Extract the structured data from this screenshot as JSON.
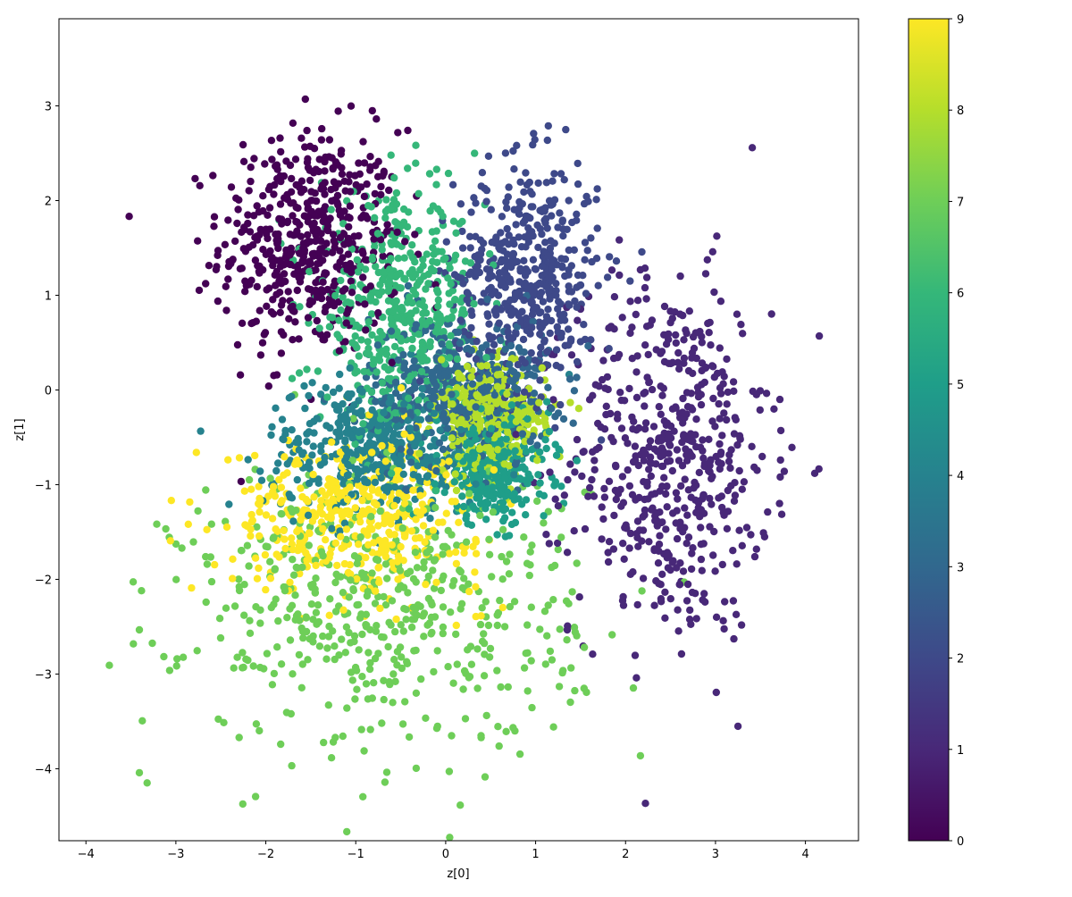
{
  "chart_data": {
    "type": "scatter",
    "title": "",
    "xlabel": "z[0]",
    "ylabel": "z[1]",
    "xlim": [
      -4.3,
      4.59
    ],
    "ylim": [
      -4.76,
      3.92
    ],
    "xticks": [
      -4,
      -3,
      -2,
      -1,
      0,
      1,
      2,
      3,
      4
    ],
    "yticks": [
      -4,
      -3,
      -2,
      -1,
      0,
      1,
      2,
      3
    ],
    "grid": false,
    "colormap": "viridis",
    "colorbar": {
      "range": [
        0,
        9
      ],
      "ticks": [
        0,
        1,
        2,
        3,
        4,
        5,
        6,
        7,
        8,
        9
      ],
      "placement": "right"
    },
    "class_colors": [
      "#440154",
      "#482878",
      "#3e4989",
      "#31688e",
      "#26828e",
      "#1f9e89",
      "#35b779",
      "#6ece58",
      "#b5de2b",
      "#fde725"
    ],
    "clusters": [
      {
        "label": 0,
        "center": [
          -1.5,
          1.55
        ],
        "std": [
          0.5,
          0.6
        ],
        "count": 520
      },
      {
        "label": 1,
        "center": [
          2.5,
          -0.7
        ],
        "std": [
          0.55,
          0.95
        ],
        "count": 560
      },
      {
        "label": 2,
        "center": [
          0.9,
          1.2
        ],
        "std": [
          0.4,
          0.6
        ],
        "count": 480
      },
      {
        "label": 3,
        "center": [
          0.15,
          0.0
        ],
        "std": [
          0.5,
          0.4
        ],
        "count": 420
      },
      {
        "label": 4,
        "center": [
          -0.8,
          -0.6
        ],
        "std": [
          0.6,
          0.35
        ],
        "count": 420
      },
      {
        "label": 5,
        "center": [
          0.55,
          -0.8
        ],
        "std": [
          0.3,
          0.3
        ],
        "count": 340
      },
      {
        "label": 6,
        "center": [
          -0.5,
          0.8
        ],
        "std": [
          0.45,
          0.6
        ],
        "count": 480
      },
      {
        "label": 7,
        "center": [
          -0.7,
          -2.3
        ],
        "std": [
          1.1,
          0.75
        ],
        "count": 560
      },
      {
        "label": 8,
        "center": [
          0.5,
          -0.3
        ],
        "std": [
          0.3,
          0.3
        ],
        "count": 360
      },
      {
        "label": 9,
        "center": [
          -1.0,
          -1.3
        ],
        "std": [
          0.7,
          0.4
        ],
        "count": 460
      }
    ]
  }
}
